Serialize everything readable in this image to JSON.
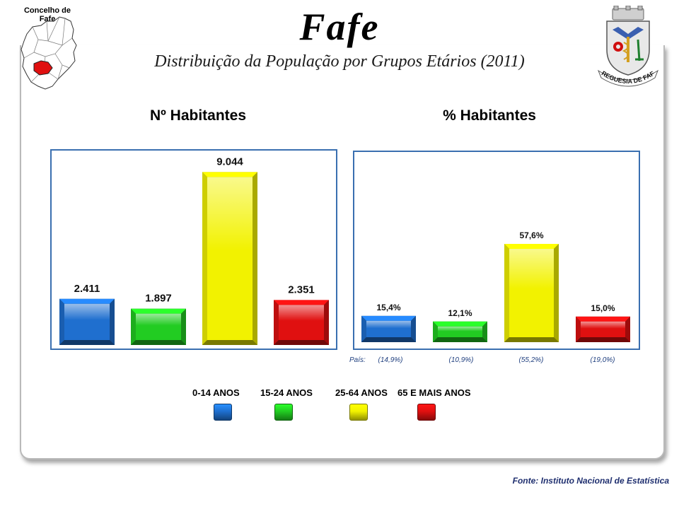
{
  "header": {
    "title": "Fafe",
    "subtitle": "Distribuição da População por Grupos Etários (2011)",
    "map_label_line1": "Concelho de",
    "map_label_line2": "Fafe",
    "crest_text": "FREGUESIA DE FAFE"
  },
  "colors": {
    "group_0_14": "#1f6fcf",
    "group_15_24": "#22cc22",
    "group_25_64": "#f2f200",
    "group_65_plus": "#e01010",
    "panel_border": "#3a6fb0"
  },
  "chart_data": [
    {
      "type": "bar",
      "title": "Nº Habitantes",
      "categories": [
        "0-14 ANOS",
        "15-24 ANOS",
        "25-64 ANOS",
        "65 E MAIS ANOS"
      ],
      "values": [
        2411,
        1897,
        9044,
        2351
      ],
      "data_labels": [
        "2.411",
        "1.897",
        "9.044",
        "2.351"
      ],
      "ylim": [
        0,
        10500
      ],
      "grid": false,
      "legend": "bottom"
    },
    {
      "type": "bar",
      "title": "% Habitantes",
      "categories": [
        "0-14 ANOS",
        "15-24 ANOS",
        "25-64 ANOS",
        "65 E MAIS ANOS"
      ],
      "values": [
        15.4,
        12.1,
        57.6,
        15.0
      ],
      "data_labels": [
        "15,4%",
        "12,1%",
        "57,6%",
        "15,0%"
      ],
      "ylim": [
        0,
        80
      ],
      "grid": false,
      "country_label": "País:",
      "country_values": [
        "(14,9%)",
        "(10,9%)",
        "(55,2%)",
        "(19,0%)"
      ]
    }
  ],
  "legend": {
    "items": [
      "0-14 ANOS",
      "15-24 ANOS",
      "25-64 ANOS",
      "65 E MAIS ANOS"
    ]
  },
  "footer": {
    "source": "Fonte: Instituto Nacional de Estatística"
  }
}
